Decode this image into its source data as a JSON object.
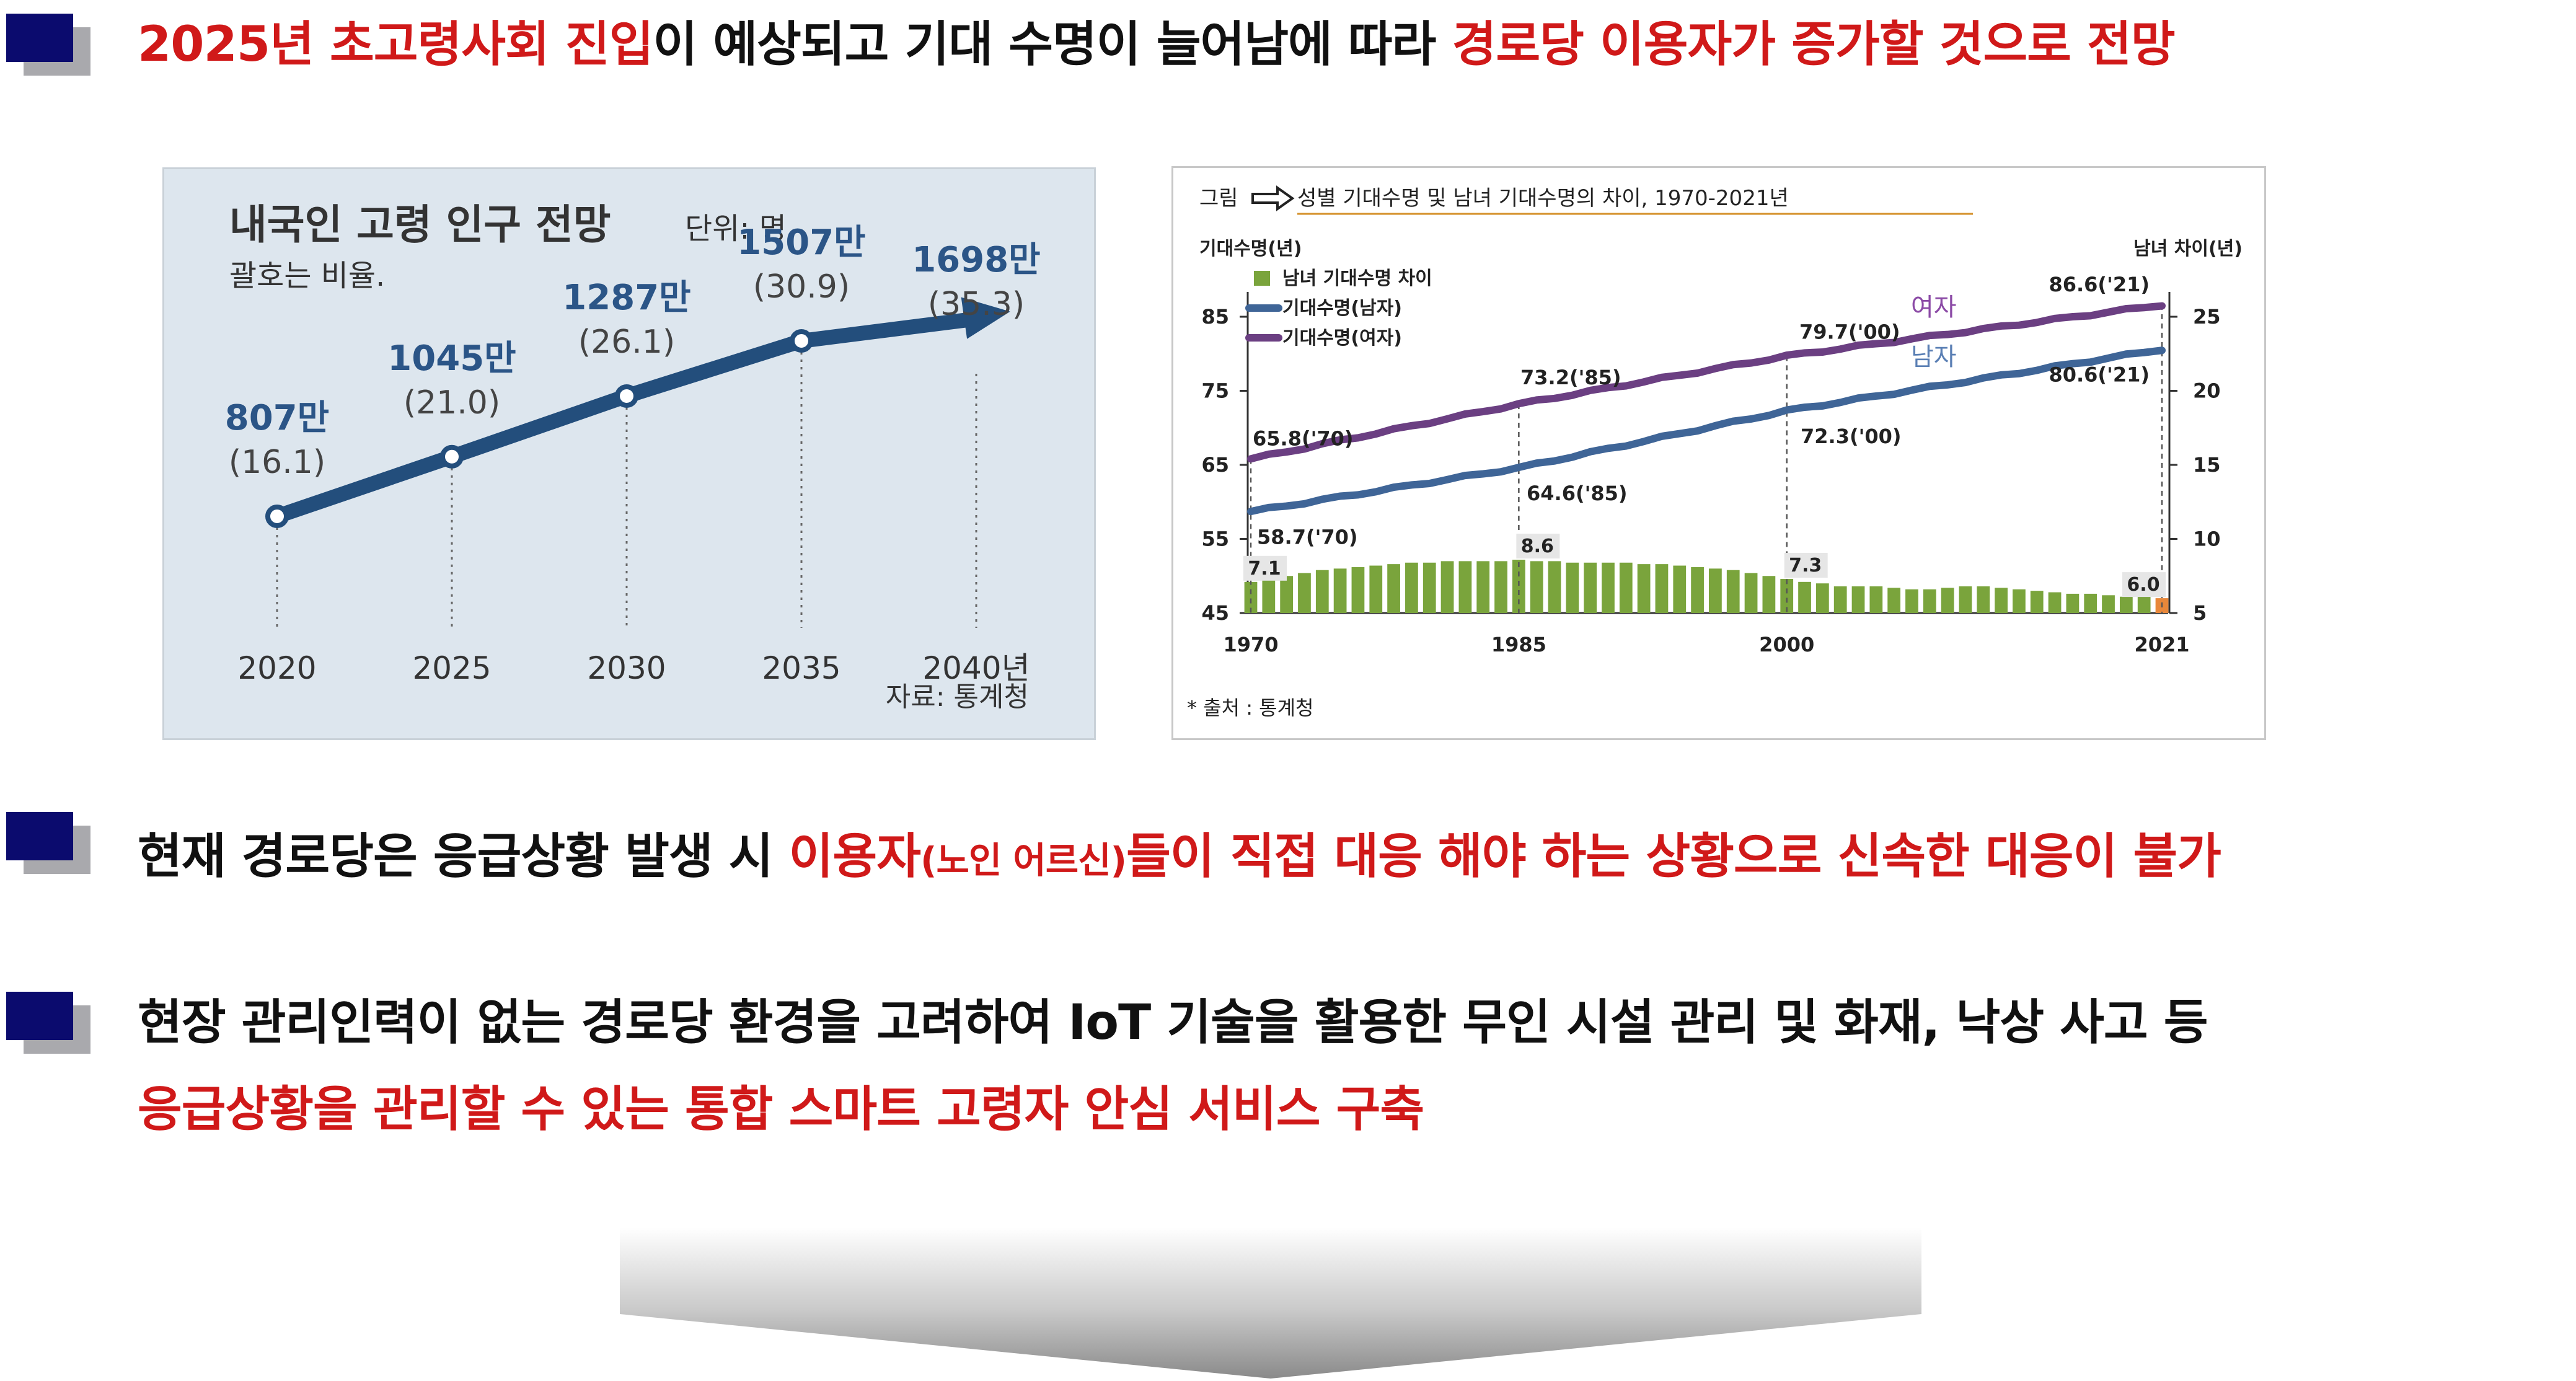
{
  "headline_1": {
    "part1_red": "2025년 초고령사회 진입",
    "part2": "이 예상되고 기대 수명이 늘어남에 따라 ",
    "part3_red": "경로당 이용자가 증가할 것으로 전망"
  },
  "headline_2": {
    "part1": "현재 경로당은 응급상황 발생 시 ",
    "part2_red": "이용자",
    "part3_red_small": "(노인 어르신)",
    "part4_red": "들이 직접 대응 해야 하는 상황으로 신속한 대응이 불가"
  },
  "headline_3": {
    "line1": "현장 관리인력이 없는 경로당 환경을 고려하여 IoT 기술을 활용한 무인 시설 관리 및 화재, 낙상 사고 등",
    "line2_red": "응급상황을 관리할 수 있는 통합 스마트 고령자 안심 서비스 구축"
  },
  "colors": {
    "accent_red": "#d01919",
    "bullet_navy": "#0b0b6e",
    "chart_navy": "#234e7c",
    "female_purple": "#6b3f82",
    "male_blue": "#3f6597",
    "bar_green": "#7aa43c",
    "bar_orange": "#e8873a"
  },
  "chart_left": {
    "title": "내국인 고령 인구 전망",
    "unit": "단위: 명",
    "subtitle": "괄호는 비율.",
    "source": "자료: 통계청"
  },
  "chart_right": {
    "caption_prefix": "그림",
    "caption_title": "성별 기대수명 및 남녀 기대수명의 차이, 1970-2021년",
    "left_axis_title": "기대수명(년)",
    "right_axis_title": "남녀 차이(년)",
    "legend": [
      "남녀 기대수명 차이",
      "기대수명(남자)",
      "기대수명(여자)"
    ],
    "label_female": "여자",
    "label_male": "남자",
    "source": "* 출처 : 통계청"
  },
  "chart_data": [
    {
      "type": "line",
      "title": "내국인 고령 인구 전망",
      "categories": [
        "2020",
        "2025",
        "2030",
        "2035",
        "2040년"
      ],
      "series": [
        {
          "values": [
            807,
            1045,
            1287,
            1507,
            1698
          ]
        }
      ],
      "value_labels": [
        "807만",
        "1045만",
        "1287만",
        "1507만",
        "1698만"
      ],
      "ratio_labels": [
        "(16.1)",
        "(21.0)",
        "(26.1)",
        "(30.9)",
        "(35.3)"
      ],
      "ratios": [
        16.1,
        21.0,
        26.1,
        30.9,
        35.3
      ]
    },
    {
      "type": "line",
      "title": "성별 기대수명 및 남녀 기대수명의 차이, 1970-2021년",
      "x_ticks": [
        "1970",
        "1985",
        "2000",
        "2021"
      ],
      "y_left_ticks": [
        "85",
        "75",
        "65",
        "55",
        "45"
      ],
      "y_right_ticks": [
        "25",
        "20",
        "15",
        "10",
        "5"
      ],
      "ylim_left": [
        45,
        89
      ],
      "ylim_right": [
        5,
        27
      ],
      "series": [
        {
          "name": "기대수명(여자)",
          "points": [
            [
              1970,
              65.8
            ],
            [
              1985,
              73.2
            ],
            [
              2000,
              79.7
            ],
            [
              2021,
              86.6
            ]
          ]
        },
        {
          "name": "기대수명(남자)",
          "points": [
            [
              1970,
              58.7
            ],
            [
              1985,
              64.6
            ],
            [
              2000,
              72.3
            ],
            [
              2021,
              80.6
            ]
          ]
        },
        {
          "name": "남녀 기대수명 차이",
          "type": "bar",
          "years": [
            1970,
            1971,
            1972,
            1973,
            1974,
            1975,
            1976,
            1977,
            1978,
            1979,
            1980,
            1981,
            1982,
            1983,
            1984,
            1985,
            1986,
            1987,
            1988,
            1989,
            1990,
            1991,
            1992,
            1993,
            1994,
            1995,
            1996,
            1997,
            1998,
            1999,
            2000,
            2001,
            2002,
            2003,
            2004,
            2005,
            2006,
            2007,
            2008,
            2009,
            2010,
            2011,
            2012,
            2013,
            2014,
            2015,
            2016,
            2017,
            2018,
            2019,
            2020,
            2021
          ],
          "values": [
            7.1,
            7.3,
            7.5,
            7.7,
            7.9,
            8.0,
            8.1,
            8.2,
            8.3,
            8.4,
            8.4,
            8.5,
            8.5,
            8.5,
            8.5,
            8.6,
            8.5,
            8.5,
            8.4,
            8.4,
            8.4,
            8.4,
            8.3,
            8.3,
            8.2,
            8.1,
            8.0,
            7.9,
            7.7,
            7.5,
            7.3,
            7.1,
            7.0,
            6.8,
            6.8,
            6.8,
            6.7,
            6.6,
            6.6,
            6.7,
            6.8,
            6.8,
            6.7,
            6.6,
            6.5,
            6.4,
            6.3,
            6.3,
            6.2,
            6.1,
            6.1,
            6.0
          ]
        }
      ],
      "annotations": [
        "65.8('70)",
        "73.2('85)",
        "79.7('00)",
        "86.6('21)",
        "58.7('70)",
        "64.6('85)",
        "72.3('00)",
        "80.6('21)",
        "7.1",
        "8.6",
        "7.3",
        "6.0"
      ]
    }
  ]
}
